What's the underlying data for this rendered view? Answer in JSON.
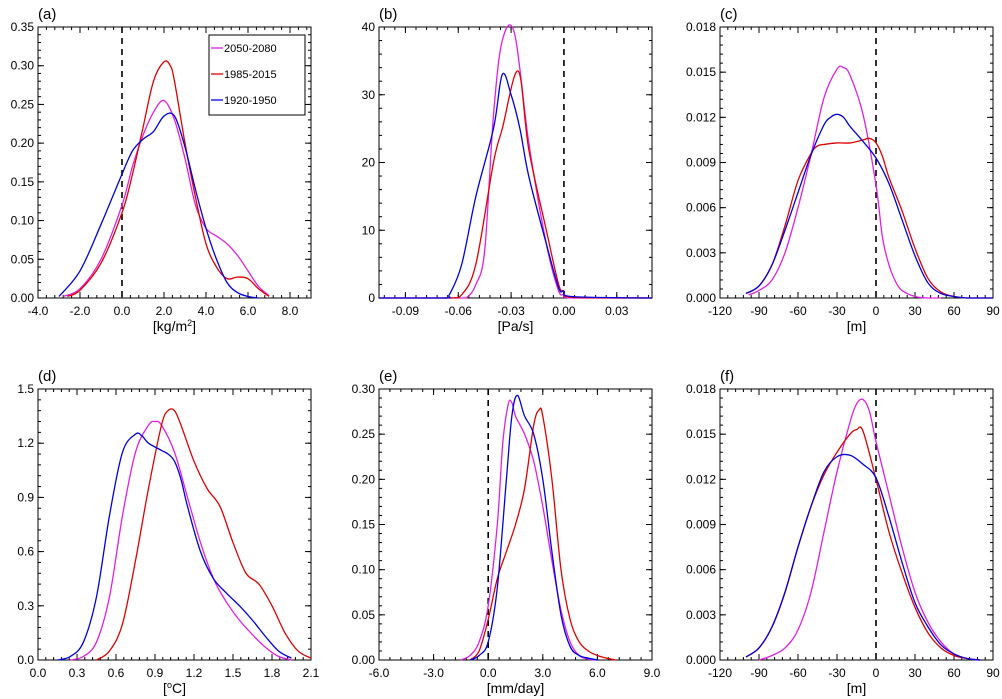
{
  "colors": {
    "2050-2080": "#e020e0",
    "1985-2015": "#e00000",
    "1920-1950": "#0000e0"
  },
  "legend": {
    "entries": [
      "2050-2080",
      "1985-2015",
      "1920-1950"
    ]
  },
  "chart_data": [
    {
      "type": "line",
      "panel": "(a)",
      "xlabel": "[kg/m2]",
      "xlim": [
        -4.0,
        9.0
      ],
      "ylim": [
        0.0,
        0.35
      ],
      "xticks": [
        "-4.0",
        "-2.0",
        "0.0",
        "2.0",
        "4.0",
        "6.0",
        "8.0"
      ],
      "yticks": [
        "0.00",
        "0.05",
        "0.10",
        "0.15",
        "0.20",
        "0.25",
        "0.30",
        "0.35"
      ],
      "vline_x": 0,
      "legend": true,
      "series": [
        {
          "name": "2050-2080",
          "x": [
            -2.8,
            -2.0,
            -1.0,
            0.0,
            0.5,
            1.0,
            1.5,
            2.0,
            2.5,
            3.0,
            3.5,
            4.0,
            4.5,
            5.0,
            5.5,
            6.0,
            6.5,
            7.0
          ],
          "y": [
            0.002,
            0.012,
            0.05,
            0.12,
            0.17,
            0.21,
            0.24,
            0.255,
            0.23,
            0.18,
            0.12,
            0.09,
            0.08,
            0.07,
            0.055,
            0.035,
            0.015,
            0.003
          ]
        },
        {
          "name": "1985-2015",
          "x": [
            -2.6,
            -2.0,
            -1.0,
            0.0,
            0.5,
            1.0,
            1.5,
            2.0,
            2.3,
            2.5,
            3.0,
            3.5,
            4.0,
            4.5,
            5.0,
            5.5,
            6.0,
            6.5,
            7.0
          ],
          "y": [
            0.002,
            0.01,
            0.045,
            0.11,
            0.16,
            0.22,
            0.28,
            0.305,
            0.3,
            0.28,
            0.2,
            0.13,
            0.07,
            0.04,
            0.025,
            0.027,
            0.025,
            0.012,
            0.002
          ]
        },
        {
          "name": "1920-1950",
          "x": [
            -3.0,
            -2.0,
            -1.0,
            0.0,
            0.5,
            1.0,
            1.5,
            2.0,
            2.5,
            3.0,
            3.5,
            4.0,
            4.5,
            5.0,
            5.5,
            6.0,
            6.5
          ],
          "y": [
            0.002,
            0.035,
            0.095,
            0.16,
            0.19,
            0.205,
            0.215,
            0.235,
            0.235,
            0.195,
            0.14,
            0.09,
            0.05,
            0.02,
            0.007,
            0.002,
            0.0
          ]
        }
      ]
    },
    {
      "type": "line",
      "panel": "(b)",
      "xlabel": "[Pa/s]",
      "xlim": [
        -0.105,
        0.05
      ],
      "ylim": [
        0,
        40
      ],
      "xticks": [
        "-0.09",
        "-0.06",
        "-0.03",
        "0.00",
        "0.03"
      ],
      "yticks": [
        "0",
        "10",
        "20",
        "30",
        "40"
      ],
      "vline_x": 0,
      "legend": false,
      "series": [
        {
          "name": "2050-2080",
          "x": [
            -0.105,
            -0.06,
            -0.055,
            -0.05,
            -0.045,
            -0.04,
            -0.035,
            -0.028,
            -0.02,
            -0.01,
            -0.003,
            0.0,
            0.005,
            0.05
          ],
          "y": [
            0,
            0,
            0.1,
            2,
            7,
            27,
            38,
            39,
            23,
            8,
            1,
            0.5,
            0,
            0
          ]
        },
        {
          "name": "1985-2015",
          "x": [
            -0.105,
            -0.065,
            -0.058,
            -0.05,
            -0.04,
            -0.035,
            -0.026,
            -0.02,
            -0.01,
            -0.003,
            0.0,
            0.005,
            0.05
          ],
          "y": [
            0,
            0,
            0.5,
            5,
            20,
            25,
            33.5,
            22,
            10,
            2,
            1,
            0.1,
            0
          ]
        },
        {
          "name": "1920-1950",
          "x": [
            -0.105,
            -0.068,
            -0.065,
            -0.058,
            -0.05,
            -0.04,
            -0.035,
            -0.03,
            -0.025,
            -0.02,
            -0.01,
            -0.003,
            0.0,
            0.005,
            0.05
          ],
          "y": [
            0,
            0,
            0.5,
            5,
            15,
            25,
            33,
            30,
            25,
            18,
            8,
            1.5,
            1,
            0.2,
            0
          ]
        }
      ]
    },
    {
      "type": "line",
      "panel": "(c)",
      "xlabel": "[m]",
      "xlim": [
        -120,
        90
      ],
      "ylim": [
        0,
        0.018
      ],
      "xticks": [
        "-120",
        "-90",
        "-60",
        "-30",
        "0",
        "30",
        "60",
        "90"
      ],
      "yticks": [
        "0.000",
        "0.003",
        "0.006",
        "0.009",
        "0.012",
        "0.015",
        "0.018"
      ],
      "vline_x": 0,
      "legend": false,
      "series": [
        {
          "name": "2050-2080",
          "x": [
            -98,
            -90,
            -80,
            -70,
            -60,
            -50,
            -40,
            -30,
            -25,
            -20,
            -10,
            0,
            5,
            10,
            15,
            20,
            30,
            40,
            50
          ],
          "y": [
            0.0002,
            0.0005,
            0.0012,
            0.003,
            0.006,
            0.0095,
            0.0133,
            0.0152,
            0.0153,
            0.0148,
            0.0122,
            0.0075,
            0.004,
            0.0022,
            0.0011,
            0.0005,
            0.0001,
            0.0,
            0.0
          ]
        },
        {
          "name": "1985-2015",
          "x": [
            -100,
            -90,
            -80,
            -70,
            -60,
            -50,
            -45,
            -40,
            -30,
            -20,
            -10,
            -5,
            0,
            5,
            10,
            20,
            30,
            40,
            50,
            60,
            70,
            80,
            90
          ],
          "y": [
            0.0003,
            0.0008,
            0.0022,
            0.0048,
            0.0078,
            0.0096,
            0.0101,
            0.0102,
            0.0103,
            0.0103,
            0.0105,
            0.0106,
            0.0103,
            0.0094,
            0.008,
            0.0058,
            0.0033,
            0.0013,
            0.0004,
            0.0001,
            0.0,
            0.0,
            0.0
          ]
        },
        {
          "name": "1920-1950",
          "x": [
            -100,
            -90,
            -80,
            -70,
            -60,
            -50,
            -40,
            -35,
            -30,
            -25,
            -20,
            -10,
            0,
            10,
            20,
            30,
            40,
            50,
            60,
            70,
            80,
            90
          ],
          "y": [
            0.0003,
            0.0008,
            0.0022,
            0.0045,
            0.007,
            0.0095,
            0.0115,
            0.012,
            0.0122,
            0.012,
            0.0114,
            0.0104,
            0.0093,
            0.0076,
            0.0052,
            0.0028,
            0.001,
            0.0003,
            0.0001,
            0.0,
            0.0,
            0.0
          ]
        }
      ]
    },
    {
      "type": "line",
      "panel": "(d)",
      "xlabel": "[°C]",
      "xlim": [
        0.0,
        2.1
      ],
      "ylim": [
        0.0,
        1.5
      ],
      "xticks": [
        "0.0",
        "0.3",
        "0.6",
        "0.9",
        "1.2",
        "1.5",
        "1.8",
        "2.1"
      ],
      "yticks": [
        "0.0",
        "0.3",
        "0.6",
        "0.9",
        "1.2",
        "1.5"
      ],
      "vline_x": null,
      "legend": false,
      "series": [
        {
          "name": "2050-2080",
          "x": [
            0.25,
            0.35,
            0.45,
            0.55,
            0.65,
            0.75,
            0.85,
            0.9,
            0.95,
            1.05,
            1.15,
            1.25,
            1.35,
            1.45,
            1.55,
            1.65,
            1.75,
            1.85,
            1.95
          ],
          "y": [
            0.0,
            0.02,
            0.1,
            0.35,
            0.8,
            1.15,
            1.3,
            1.32,
            1.3,
            1.15,
            0.9,
            0.65,
            0.45,
            0.32,
            0.22,
            0.14,
            0.07,
            0.02,
            0.0
          ]
        },
        {
          "name": "1985-2015",
          "x": [
            0.45,
            0.55,
            0.65,
            0.75,
            0.85,
            0.95,
            1.0,
            1.05,
            1.1,
            1.2,
            1.3,
            1.4,
            1.5,
            1.6,
            1.7,
            1.8,
            1.9,
            2.0,
            2.1
          ],
          "y": [
            0.0,
            0.05,
            0.2,
            0.55,
            0.95,
            1.3,
            1.38,
            1.38,
            1.3,
            1.1,
            0.95,
            0.85,
            0.65,
            0.48,
            0.42,
            0.3,
            0.15,
            0.05,
            0.01
          ]
        },
        {
          "name": "1920-1950",
          "x": [
            0.15,
            0.25,
            0.35,
            0.45,
            0.55,
            0.65,
            0.75,
            0.8,
            0.85,
            0.95,
            1.0,
            1.05,
            1.1,
            1.15,
            1.25,
            1.35,
            1.45,
            1.55,
            1.65,
            1.75,
            1.85,
            1.95
          ],
          "y": [
            0.0,
            0.02,
            0.1,
            0.35,
            0.8,
            1.15,
            1.25,
            1.24,
            1.2,
            1.16,
            1.14,
            1.1,
            1.0,
            0.85,
            0.6,
            0.45,
            0.37,
            0.3,
            0.22,
            0.13,
            0.05,
            0.01
          ]
        }
      ]
    },
    {
      "type": "line",
      "panel": "(e)",
      "xlabel": "[mm/day]",
      "xlim": [
        -6.0,
        9.0
      ],
      "ylim": [
        0.0,
        0.3
      ],
      "xticks": [
        "-6.0",
        "-3.0",
        "0.0",
        "3.0",
        "6.0",
        "9.0"
      ],
      "yticks": [
        "0.00",
        "0.05",
        "0.10",
        "0.15",
        "0.20",
        "0.25",
        "0.30"
      ],
      "vline_x": 0,
      "legend": false,
      "series": [
        {
          "name": "2050-2080",
          "x": [
            -1.5,
            -1.0,
            -0.5,
            0.0,
            0.5,
            0.8,
            1.1,
            1.3,
            1.5,
            2.0,
            2.5,
            3.0,
            3.5,
            4.0,
            4.5,
            5.0,
            5.5,
            6.0
          ],
          "y": [
            0.0,
            0.005,
            0.02,
            0.06,
            0.15,
            0.24,
            0.283,
            0.285,
            0.27,
            0.25,
            0.22,
            0.17,
            0.11,
            0.055,
            0.02,
            0.005,
            0.001,
            0.0
          ]
        },
        {
          "name": "1985-2015",
          "x": [
            -1.0,
            -0.5,
            0.0,
            0.5,
            1.0,
            1.5,
            2.0,
            2.5,
            2.8,
            3.0,
            3.5,
            4.0,
            4.5,
            5.0,
            5.5,
            6.0,
            6.5,
            7.0
          ],
          "y": [
            0.0,
            0.01,
            0.045,
            0.09,
            0.12,
            0.15,
            0.19,
            0.26,
            0.277,
            0.27,
            0.2,
            0.1,
            0.045,
            0.02,
            0.01,
            0.005,
            0.002,
            0.0
          ]
        },
        {
          "name": "1920-1950",
          "x": [
            -1.0,
            -0.5,
            0.0,
            0.5,
            1.0,
            1.3,
            1.6,
            2.0,
            2.5,
            3.0,
            3.5,
            4.0,
            4.5,
            5.0,
            5.5,
            6.0
          ],
          "y": [
            0.0,
            0.005,
            0.02,
            0.08,
            0.2,
            0.27,
            0.293,
            0.27,
            0.25,
            0.2,
            0.12,
            0.05,
            0.015,
            0.005,
            0.002,
            0.0
          ]
        }
      ]
    },
    {
      "type": "line",
      "panel": "(f)",
      "xlabel": "[m]",
      "xlim": [
        -120,
        90
      ],
      "ylim": [
        0,
        0.018
      ],
      "xticks": [
        "-120",
        "-90",
        "-60",
        "-30",
        "0",
        "30",
        "60",
        "90"
      ],
      "yticks": [
        "0.000",
        "0.003",
        "0.006",
        "0.009",
        "0.012",
        "0.015",
        "0.018"
      ],
      "vline_x": 0,
      "legend": false,
      "series": [
        {
          "name": "2050-2080",
          "x": [
            -90,
            -80,
            -70,
            -60,
            -50,
            -40,
            -30,
            -20,
            -15,
            -10,
            -5,
            0,
            10,
            20,
            30,
            40,
            50,
            60,
            70,
            80
          ],
          "y": [
            0.0,
            0.0003,
            0.0008,
            0.002,
            0.0045,
            0.0085,
            0.0125,
            0.0158,
            0.017,
            0.0173,
            0.0165,
            0.0145,
            0.011,
            0.0075,
            0.0045,
            0.0025,
            0.0012,
            0.0004,
            0.0001,
            0.0
          ]
        },
        {
          "name": "1985-2015",
          "x": [
            -100,
            -90,
            -80,
            -70,
            -60,
            -50,
            -40,
            -30,
            -20,
            -15,
            -10,
            0,
            10,
            20,
            30,
            40,
            50,
            60,
            70,
            80
          ],
          "y": [
            0.0002,
            0.0008,
            0.0022,
            0.0045,
            0.0075,
            0.0102,
            0.0123,
            0.0138,
            0.015,
            0.0153,
            0.0152,
            0.012,
            0.0085,
            0.0058,
            0.0035,
            0.0018,
            0.0008,
            0.0003,
            0.0001,
            0.0
          ]
        },
        {
          "name": "1920-1950",
          "x": [
            -100,
            -90,
            -80,
            -70,
            -60,
            -50,
            -40,
            -30,
            -20,
            -10,
            0,
            10,
            20,
            30,
            40,
            50,
            60,
            70,
            80
          ],
          "y": [
            0.0002,
            0.0008,
            0.0022,
            0.0045,
            0.0075,
            0.0102,
            0.0125,
            0.0135,
            0.0136,
            0.013,
            0.0121,
            0.0095,
            0.0065,
            0.0038,
            0.0022,
            0.001,
            0.0004,
            0.0001,
            0.0
          ]
        }
      ]
    }
  ]
}
